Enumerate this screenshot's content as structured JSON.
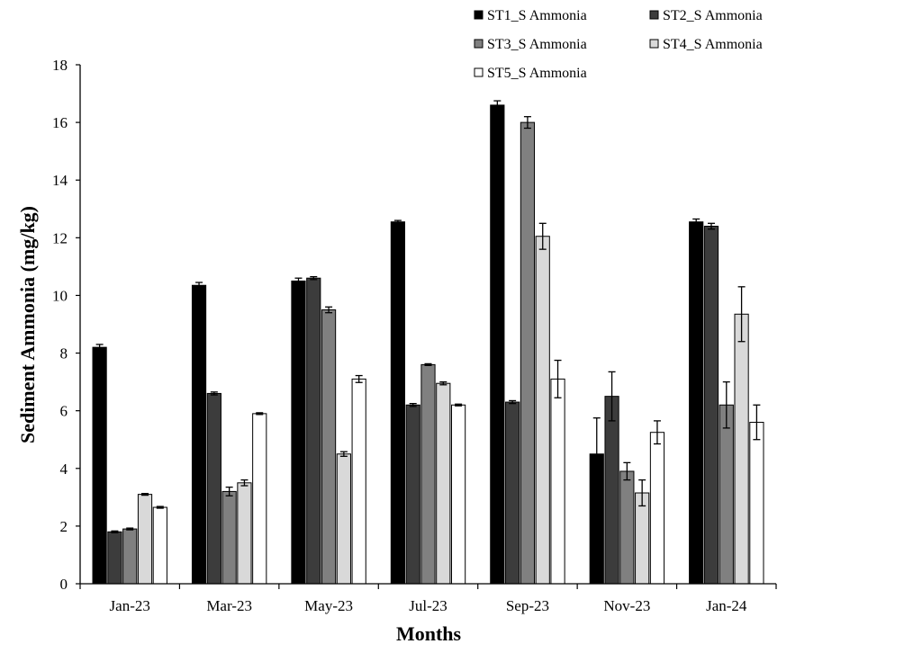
{
  "chart_data": {
    "type": "bar",
    "title": "",
    "xlabel": "Months",
    "ylabel": "Sediment Ammonia (mg/kg)",
    "ylim": [
      0,
      18
    ],
    "yticks": [
      "0",
      "2",
      "4",
      "6",
      "8",
      "10",
      "12",
      "14",
      "16",
      "18"
    ],
    "categories": [
      "Jan-23",
      "Mar-23",
      "May-23",
      "Jul-23",
      "Sep-23",
      "Nov-23",
      "Jan-24"
    ],
    "legend_position": "top-right",
    "grid": false,
    "series": [
      {
        "name": "ST1_S Ammonia",
        "color": "#000000",
        "values": [
          8.2,
          10.35,
          10.5,
          12.55,
          16.6,
          4.5,
          12.55
        ],
        "errors": [
          0.1,
          0.1,
          0.1,
          0.05,
          0.15,
          1.25,
          0.1
        ]
      },
      {
        "name": "ST2_S Ammonia",
        "color": "#3c3c3c",
        "values": [
          1.8,
          6.6,
          10.6,
          6.2,
          6.3,
          6.5,
          12.4
        ],
        "errors": [
          0.03,
          0.05,
          0.05,
          0.05,
          0.05,
          0.85,
          0.1
        ]
      },
      {
        "name": "ST3_S Ammonia",
        "color": "#808080",
        "values": [
          1.9,
          3.2,
          9.5,
          7.6,
          16.0,
          3.9,
          6.2
        ],
        "errors": [
          0.03,
          0.15,
          0.1,
          0.03,
          0.2,
          0.3,
          0.8
        ]
      },
      {
        "name": "ST4_S Ammonia",
        "color": "#d9d9d9",
        "values": [
          3.1,
          3.5,
          4.5,
          6.95,
          12.05,
          3.15,
          9.35
        ],
        "errors": [
          0.03,
          0.1,
          0.08,
          0.05,
          0.45,
          0.45,
          0.95
        ]
      },
      {
        "name": "ST5_S Ammonia",
        "color": "#ffffff",
        "values": [
          2.65,
          5.9,
          7.1,
          6.2,
          7.1,
          5.25,
          5.6
        ],
        "errors": [
          0.03,
          0.03,
          0.12,
          0.03,
          0.65,
          0.4,
          0.6
        ]
      }
    ]
  }
}
